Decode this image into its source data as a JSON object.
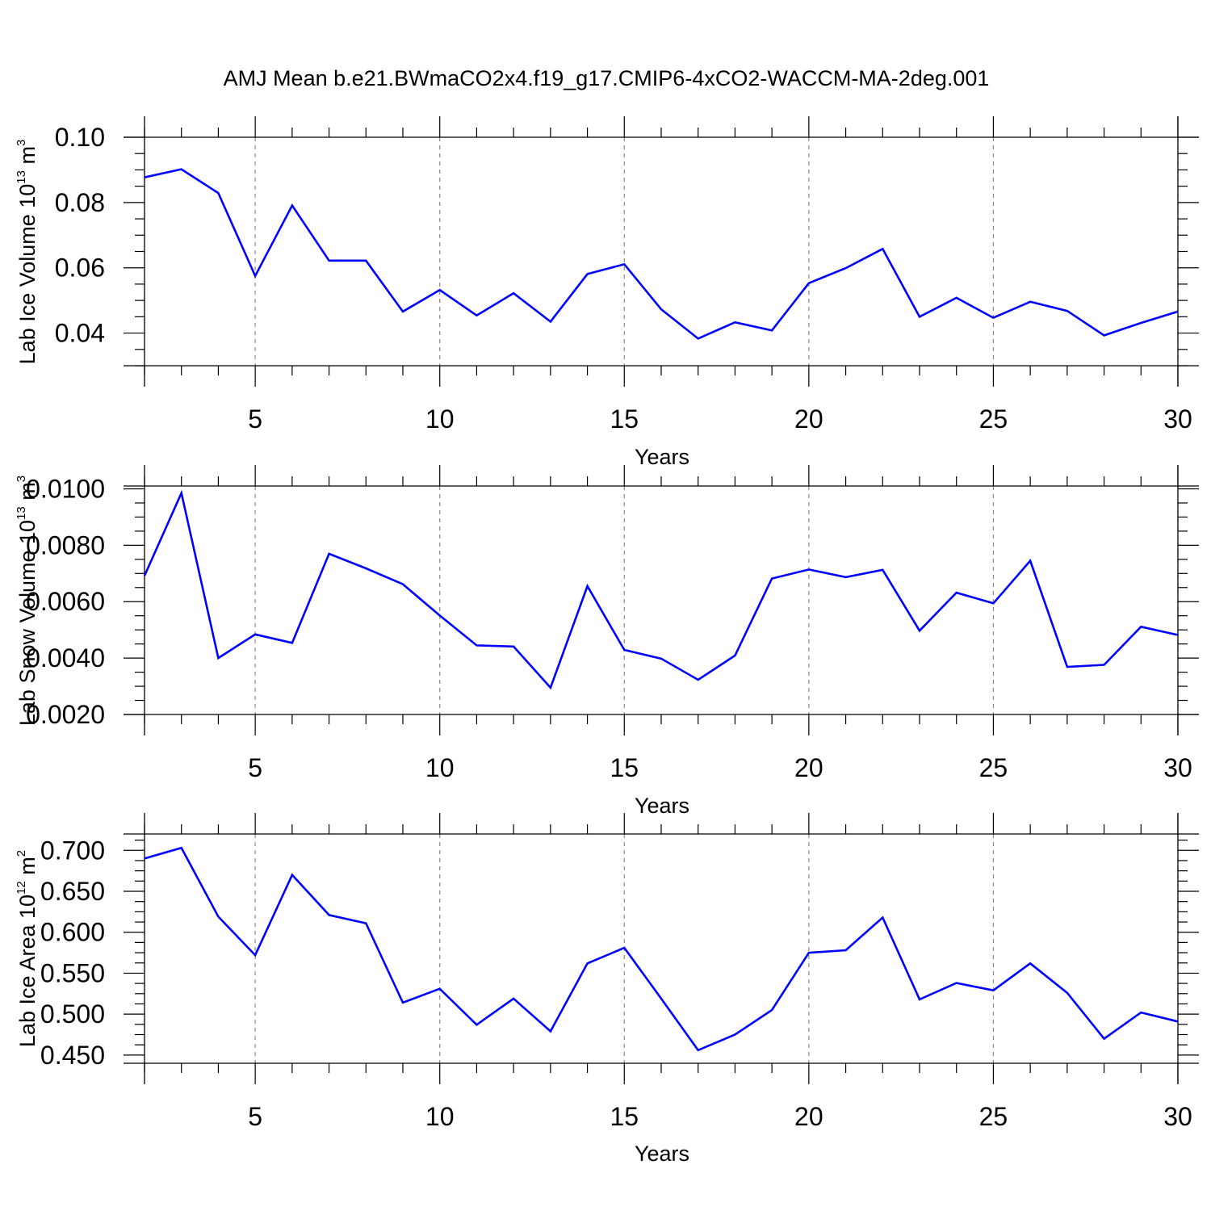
{
  "title": "AMJ Mean b.e21.BWmaCO2x4.f19_g17.CMIP6-4xCO2-WACCM-MA-2deg.001",
  "colors": {
    "line": "#0000ff",
    "axis": "#000000",
    "grid": "#888888"
  },
  "chart_data": [
    {
      "type": "line",
      "title": "",
      "xlabel": "Years",
      "ylabel": {
        "text": "Lab Ice Volume 10",
        "sup": "13",
        "unit": " m",
        "unit_sup": "3"
      },
      "xlim": [
        2,
        30
      ],
      "ylim": [
        0.03,
        0.1
      ],
      "xticks": [
        5,
        10,
        15,
        20,
        25,
        30
      ],
      "xtick_labels": [
        "5",
        "10",
        "15",
        "20",
        "25",
        "30"
      ],
      "yticks": [
        0.04,
        0.06,
        0.08,
        0.1
      ],
      "ytick_labels": [
        "0.04",
        "0.06",
        "0.08",
        "0.10"
      ],
      "grid": "vertical dashed at major x ticks",
      "x": [
        2,
        3,
        4,
        5,
        6,
        7,
        8,
        9,
        10,
        11,
        12,
        13,
        14,
        15,
        16,
        17,
        18,
        19,
        20,
        21,
        22,
        23,
        24,
        25,
        26,
        27,
        28,
        29,
        30
      ],
      "series": [
        {
          "values": [
            0.0877,
            0.0902,
            0.0829,
            0.0575,
            0.0791,
            0.0622,
            0.0622,
            0.0466,
            0.0532,
            0.0454,
            0.0522,
            0.0435,
            0.0581,
            0.0611,
            0.0473,
            0.0383,
            0.0433,
            0.0408,
            0.0553,
            0.0599,
            0.0658,
            0.045,
            0.0508,
            0.0447,
            0.0496,
            0.0468,
            0.0393,
            0.0431,
            0.0466
          ]
        }
      ]
    },
    {
      "type": "line",
      "title": "",
      "xlabel": "Years",
      "ylabel": {
        "text": "Lab Snow Volume 10",
        "sup": "13",
        "unit": " m",
        "unit_sup": "3"
      },
      "xlim": [
        2,
        30
      ],
      "ylim": [
        0.002,
        0.0101
      ],
      "xticks": [
        5,
        10,
        15,
        20,
        25,
        30
      ],
      "xtick_labels": [
        "5",
        "10",
        "15",
        "20",
        "25",
        "30"
      ],
      "yticks": [
        0.002,
        0.004,
        0.006,
        0.008,
        0.01
      ],
      "ytick_labels": [
        "0.0020",
        "0.0040",
        "0.0060",
        "0.0080",
        "0.0100"
      ],
      "grid": "vertical dashed at major x ticks",
      "x": [
        2,
        3,
        4,
        5,
        6,
        7,
        8,
        9,
        10,
        11,
        12,
        13,
        14,
        15,
        16,
        17,
        18,
        19,
        20,
        21,
        22,
        23,
        24,
        25,
        26,
        27,
        28,
        29,
        30
      ],
      "series": [
        {
          "values": [
            0.00692,
            0.00985,
            0.004,
            0.00484,
            0.00454,
            0.0077,
            0.00718,
            0.00662,
            0.00551,
            0.00445,
            0.00441,
            0.00295,
            0.00655,
            0.00429,
            0.00398,
            0.00323,
            0.00409,
            0.00682,
            0.00714,
            0.00687,
            0.00713,
            0.00497,
            0.00632,
            0.00594,
            0.00745,
            0.00369,
            0.00376,
            0.00511,
            0.00482
          ]
        }
      ]
    },
    {
      "type": "line",
      "title": "",
      "xlabel": "Years",
      "ylabel": {
        "text": "Lab Ice Area 10",
        "sup": "12",
        "unit": " m",
        "unit_sup": "2"
      },
      "xlim": [
        2,
        30
      ],
      "ylim": [
        0.44,
        0.72
      ],
      "xticks": [
        5,
        10,
        15,
        20,
        25,
        30
      ],
      "xtick_labels": [
        "5",
        "10",
        "15",
        "20",
        "25",
        "30"
      ],
      "yticks": [
        0.45,
        0.5,
        0.55,
        0.6,
        0.65,
        0.7
      ],
      "ytick_labels": [
        "0.450",
        "0.500",
        "0.550",
        "0.600",
        "0.650",
        "0.700"
      ],
      "grid": "vertical dashed at major x ticks",
      "x": [
        2,
        3,
        4,
        5,
        6,
        7,
        8,
        9,
        10,
        11,
        12,
        13,
        14,
        15,
        16,
        17,
        18,
        19,
        20,
        21,
        22,
        23,
        24,
        25,
        26,
        27,
        28,
        29,
        30
      ],
      "series": [
        {
          "values": [
            0.69,
            0.703,
            0.619,
            0.572,
            0.67,
            0.621,
            0.611,
            0.514,
            0.531,
            0.487,
            0.519,
            0.479,
            0.562,
            0.581,
            0.519,
            0.456,
            0.475,
            0.505,
            0.575,
            0.578,
            0.618,
            0.518,
            0.538,
            0.529,
            0.562,
            0.526,
            0.47,
            0.502,
            0.491
          ]
        }
      ]
    }
  ]
}
